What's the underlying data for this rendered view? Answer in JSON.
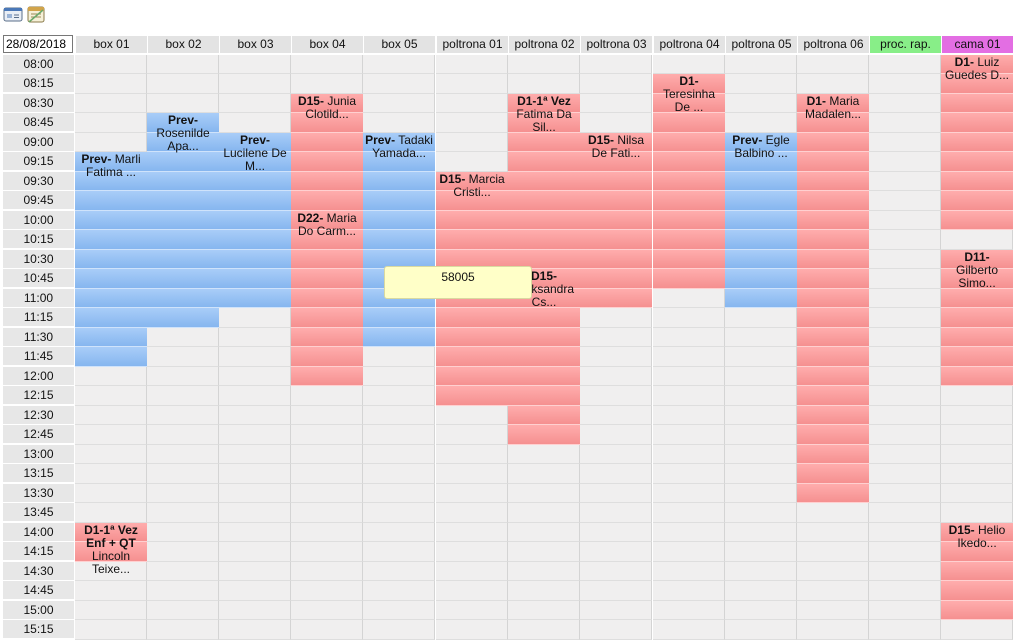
{
  "toolbar": {
    "icons": [
      "id-card-icon",
      "calendar-icon"
    ]
  },
  "date": "28/08/2018",
  "columns": [
    {
      "label": "box 01",
      "color": "#e3e3e3"
    },
    {
      "label": "box 02",
      "color": "#e3e3e3"
    },
    {
      "label": "box 03",
      "color": "#e3e3e3"
    },
    {
      "label": "box 04",
      "color": "#e3e3e3"
    },
    {
      "label": "box 05",
      "color": "#e3e3e3"
    },
    {
      "label": "poltrona 01",
      "color": "#e3e3e3"
    },
    {
      "label": "poltrona 02",
      "color": "#e3e3e3"
    },
    {
      "label": "poltrona 03",
      "color": "#e3e3e3"
    },
    {
      "label": "poltrona 04",
      "color": "#e3e3e3"
    },
    {
      "label": "poltrona 05",
      "color": "#e3e3e3"
    },
    {
      "label": "poltrona 06",
      "color": "#e3e3e3"
    },
    {
      "label": "proc. rap.",
      "color": "#88ee88"
    },
    {
      "label": "cama 01",
      "color": "#e36ee3"
    }
  ],
  "times": [
    "08:00",
    "08:15",
    "08:30",
    "08:45",
    "09:00",
    "09:15",
    "09:30",
    "09:45",
    "10:00",
    "10:15",
    "10:30",
    "10:45",
    "11:00",
    "11:15",
    "11:30",
    "11:45",
    "12:00",
    "12:15",
    "12:30",
    "12:45",
    "13:00",
    "13:15",
    "13:30",
    "13:45",
    "14:00",
    "14:15",
    "14:30",
    "14:45",
    "15:00",
    "15:15"
  ],
  "colors": {
    "red": "#f7a0a0",
    "blue": "#98c1f4",
    "empty": "#f0efef"
  },
  "appointments": [
    {
      "col": 0,
      "start": "09:15",
      "end": "12:00",
      "color": "blue",
      "prefix": "Prev-",
      "text": "Marli Fatima ..."
    },
    {
      "col": 1,
      "start": "08:45",
      "end": "11:30",
      "color": "blue",
      "prefix": "Prev-",
      "text": "Rosenilde Apa..."
    },
    {
      "col": 2,
      "start": "09:00",
      "end": "11:15",
      "color": "blue",
      "prefix": "Prev-",
      "text": "Lucilene De M..."
    },
    {
      "col": 3,
      "start": "08:30",
      "end": "10:00",
      "color": "red",
      "prefix": "D15-",
      "text": "Junia Clotild..."
    },
    {
      "col": 3,
      "start": "10:00",
      "end": "12:15",
      "color": "red",
      "prefix": "D22-",
      "text": "Maria Do Carm..."
    },
    {
      "col": 4,
      "start": "09:00",
      "end": "11:45",
      "color": "blue",
      "prefix": "Prev-",
      "text": "Tadaki Yamada..."
    },
    {
      "col": 5,
      "start": "09:30",
      "end": "12:30",
      "color": "red",
      "prefix": "D15-",
      "text": "Marcia Cristi..."
    },
    {
      "col": 6,
      "start": "08:30",
      "end": "10:45",
      "color": "red",
      "prefix": "D1-1ª Vez",
      "text": "Fatima Da Sil..."
    },
    {
      "col": 6,
      "start": "10:45",
      "end": "13:00",
      "color": "red",
      "prefix": "D15-",
      "text": "Aleksandra Cs..."
    },
    {
      "col": 7,
      "start": "09:00",
      "end": "11:15",
      "color": "red",
      "prefix": "D15-",
      "text": "Nilsa De Fati..."
    },
    {
      "col": 8,
      "start": "08:15",
      "end": "11:00",
      "color": "red",
      "prefix": "D1-",
      "text": "Teresinha De ..."
    },
    {
      "col": 9,
      "start": "09:00",
      "end": "11:15",
      "color": "blue",
      "prefix": "Prev-",
      "text": "Egle Balbino ..."
    },
    {
      "col": 10,
      "start": "08:30",
      "end": "13:45",
      "color": "red",
      "prefix": "D1-",
      "text": "Maria Madalen..."
    },
    {
      "col": 12,
      "start": "08:00",
      "end": "10:15",
      "color": "red",
      "prefix": "D1-",
      "text": "Luiz Guedes D..."
    },
    {
      "col": 12,
      "start": "10:30",
      "end": "12:15",
      "color": "red",
      "prefix": "D11-",
      "text": "Gilberto Simo..."
    },
    {
      "col": 12,
      "start": "14:00",
      "end": "15:15",
      "color": "red",
      "prefix": "D15-",
      "text": "Helio Ikedo..."
    },
    {
      "col": 0,
      "start": "14:00",
      "end": "14:30",
      "color": "red",
      "prefix": "D1-1ª Vez Enf + QT",
      "text": "Lincoln Teixe..."
    }
  ],
  "tooltip": "58005"
}
